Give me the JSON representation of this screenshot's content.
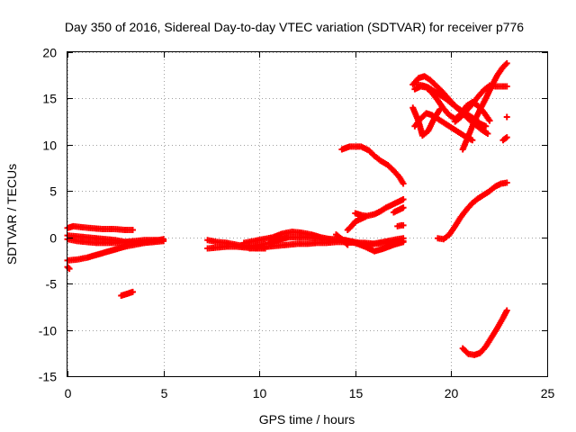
{
  "chart_data": {
    "type": "scatter",
    "title": "Day 350 of 2016, Sidereal Day-to-day VTEC variation (SDTVAR) for receiver p776",
    "xlabel": "GPS time / hours",
    "ylabel": "SDTVAR / TECUs",
    "xlim": [
      0,
      25
    ],
    "ylim": [
      -15,
      20
    ],
    "xticks": [
      "0",
      "5",
      "10",
      "15",
      "20",
      "25"
    ],
    "yticks": [
      "-15",
      "-10",
      "-5",
      "0",
      "5",
      "10",
      "15",
      "20"
    ],
    "grid": true,
    "marker": "plus",
    "color": "#ff0000",
    "traces": [
      {
        "x": [
          0.0,
          0.3,
          0.7,
          1.2,
          1.8,
          2.4,
          3.0,
          3.4
        ],
        "y": [
          1.0,
          1.2,
          1.1,
          1.0,
          0.9,
          0.9,
          0.8,
          0.8
        ]
      },
      {
        "x": [
          0.0,
          0.5,
          1.0,
          1.5,
          2.0,
          2.5,
          3.0,
          3.5,
          4.0,
          4.5,
          5.0
        ],
        "y": [
          -0.2,
          -0.4,
          -0.5,
          -0.6,
          -0.6,
          -0.6,
          -0.5,
          -0.4,
          -0.3,
          -0.3,
          -0.3
        ]
      },
      {
        "x": [
          0.0,
          0.5,
          1.0,
          1.5,
          2.0,
          2.5,
          3.0,
          3.5,
          4.0,
          4.5,
          5.0
        ],
        "y": [
          0.2,
          0.1,
          0.0,
          -0.1,
          -0.2,
          -0.3,
          -0.5,
          -0.6,
          -0.6,
          -0.4,
          -0.2
        ]
      },
      {
        "x": [
          0.0,
          0.5,
          1.0,
          1.5,
          2.0,
          2.5,
          3.0,
          3.5,
          4.0,
          4.5,
          5.0
        ],
        "y": [
          -2.5,
          -2.4,
          -2.2,
          -1.9,
          -1.6,
          -1.3,
          -1.0,
          -0.8,
          -0.6,
          -0.5,
          -0.4
        ]
      },
      {
        "x": [
          0.0,
          0.1
        ],
        "y": [
          -3.2,
          -3.4
        ]
      },
      {
        "x": [
          2.8,
          3.1,
          3.4
        ],
        "y": [
          -6.3,
          -6.1,
          -5.9
        ]
      },
      {
        "x": [
          7.3,
          7.8,
          8.3,
          8.8,
          9.3,
          9.8,
          10.3
        ],
        "y": [
          -0.3,
          -0.5,
          -0.6,
          -0.8,
          -1.0,
          -0.9,
          -0.7
        ]
      },
      {
        "x": [
          7.3,
          7.8,
          8.3,
          8.8,
          9.3,
          9.8,
          10.3
        ],
        "y": [
          -1.2,
          -1.1,
          -1.0,
          -1.0,
          -1.1,
          -1.2,
          -1.2
        ]
      },
      {
        "x": [
          9.2,
          9.7,
          10.2,
          10.7,
          11.2,
          11.7,
          12.2,
          12.7,
          13.2,
          13.7,
          14.2,
          14.7,
          15.2,
          15.7,
          16.2,
          16.7,
          17.2,
          17.5
        ],
        "y": [
          -0.6,
          -0.4,
          -0.2,
          0.0,
          0.4,
          0.6,
          0.5,
          0.3,
          0.0,
          -0.2,
          -0.3,
          -0.4,
          -0.6,
          -0.8,
          -0.6,
          -0.4,
          -0.2,
          -0.1
        ]
      },
      {
        "x": [
          9.5,
          10.0,
          10.5,
          11.0,
          11.5,
          12.0,
          12.5,
          13.0,
          13.5,
          14.0,
          14.5,
          15.0,
          15.5,
          16.0,
          16.5,
          17.0,
          17.5
        ],
        "y": [
          -1.2,
          -1.1,
          -1.0,
          -0.9,
          -0.8,
          -0.7,
          -0.7,
          -0.6,
          -0.6,
          -0.5,
          -0.5,
          -0.6,
          -0.6,
          -0.7,
          -0.6,
          -0.5,
          -0.4
        ]
      },
      {
        "x": [
          10.5,
          11.0,
          11.5,
          12.0,
          12.5,
          13.0,
          13.5,
          14.0,
          14.5,
          15.0,
          15.5,
          16.0,
          16.5,
          17.0,
          17.5
        ],
        "y": [
          -0.6,
          -0.3,
          0.0,
          0.0,
          0.0,
          -0.1,
          -0.2,
          -0.2,
          -0.3,
          -0.6,
          -1.0,
          -1.5,
          -1.2,
          -0.8,
          -0.5
        ]
      },
      {
        "x": [
          14.0,
          14.3,
          14.6
        ],
        "y": [
          0.3,
          -0.2,
          -0.8
        ]
      },
      {
        "x": [
          14.3,
          14.7,
          15.0,
          15.3,
          15.7,
          16.0,
          16.3,
          16.7,
          17.0,
          17.3,
          17.5
        ],
        "y": [
          9.5,
          9.8,
          9.8,
          9.8,
          9.4,
          8.8,
          8.3,
          7.8,
          7.2,
          6.5,
          5.8
        ]
      },
      {
        "x": [
          14.6,
          14.8,
          15.0,
          15.3,
          15.6,
          16.0,
          16.3,
          16.6,
          17.0,
          17.3,
          17.5
        ],
        "y": [
          0.8,
          1.2,
          1.7,
          2.0,
          2.3,
          2.5,
          2.8,
          3.2,
          3.6,
          3.9,
          4.1
        ]
      },
      {
        "x": [
          15.0,
          15.3,
          15.6
        ],
        "y": [
          2.6,
          2.4,
          2.3
        ]
      },
      {
        "x": [
          17.0,
          17.3,
          17.5
        ],
        "y": [
          2.7,
          3.0,
          3.2
        ]
      },
      {
        "x": [
          17.2,
          17.4,
          17.5
        ],
        "y": [
          1.2,
          1.3,
          1.3
        ]
      },
      {
        "x": [
          18.0,
          18.3,
          18.6,
          18.9,
          19.2,
          19.5,
          19.8,
          20.1,
          20.4,
          20.7,
          21.0,
          21.3,
          21.6,
          21.9
        ],
        "y": [
          16.5,
          17.2,
          17.4,
          17.0,
          16.4,
          15.8,
          15.1,
          14.4,
          13.8,
          13.2,
          12.6,
          12.1,
          11.6,
          11.2
        ]
      },
      {
        "x": [
          18.2,
          18.5,
          18.8,
          19.1,
          19.4,
          19.7,
          20.0,
          20.3,
          20.6,
          20.9,
          21.2,
          21.5,
          21.8
        ],
        "y": [
          16.5,
          16.4,
          16.2,
          15.8,
          15.4,
          15.0,
          14.5,
          14.0,
          13.6,
          13.2,
          12.8,
          12.3,
          12.0
        ]
      },
      {
        "x": [
          18.1,
          18.4,
          18.7,
          19.0,
          19.3,
          19.6,
          19.9,
          20.2,
          20.5,
          20.8,
          21.1,
          21.4,
          21.7,
          22.0
        ],
        "y": [
          16.0,
          16.3,
          16.2,
          15.6,
          14.8,
          13.9,
          13.2,
          12.8,
          13.3,
          14.2,
          14.6,
          14.2,
          13.5,
          12.6
        ]
      },
      {
        "x": [
          18.0,
          18.3,
          18.5,
          18.8,
          19.1,
          19.4
        ],
        "y": [
          14.0,
          12.5,
          11.0,
          11.5,
          12.8,
          13.8
        ]
      },
      {
        "x": [
          18.1,
          18.4,
          18.7,
          19.0,
          19.3,
          19.6,
          19.9,
          20.2,
          20.5,
          20.8,
          21.1
        ],
        "y": [
          12.0,
          12.8,
          13.4,
          13.2,
          12.8,
          12.4,
          12.0,
          11.6,
          11.2,
          10.8,
          10.5
        ]
      },
      {
        "x": [
          20.2,
          20.5,
          20.8,
          21.1,
          21.4,
          21.7,
          22.0,
          22.3,
          22.6,
          22.9
        ],
        "y": [
          12.5,
          13.0,
          13.7,
          14.4,
          15.2,
          15.9,
          16.4,
          16.3,
          16.3,
          16.3
        ]
      },
      {
        "x": [
          20.6,
          20.9,
          21.2,
          21.5,
          21.8,
          22.1,
          22.4,
          22.7,
          22.9
        ],
        "y": [
          9.5,
          11.0,
          12.5,
          13.8,
          15.0,
          16.3,
          17.5,
          18.4,
          18.8
        ]
      },
      {
        "x": [
          19.3,
          19.6,
          19.9,
          20.2,
          20.5,
          20.8,
          21.1,
          21.4,
          21.7,
          22.0,
          22.3,
          22.6,
          22.9
        ],
        "y": [
          -0.1,
          -0.2,
          0.3,
          1.2,
          2.2,
          3.0,
          3.7,
          4.2,
          4.6,
          5.0,
          5.5,
          5.8,
          5.9
        ]
      },
      {
        "x": [
          20.6,
          20.9,
          21.2,
          21.5,
          21.8,
          22.1,
          22.4,
          22.7,
          22.9
        ],
        "y": [
          -12.0,
          -12.6,
          -12.7,
          -12.5,
          -11.8,
          -10.8,
          -9.8,
          -8.7,
          -7.9
        ]
      },
      {
        "x": [
          22.7,
          22.9
        ],
        "y": [
          10.5,
          10.8
        ]
      },
      {
        "x": [
          22.9
        ],
        "y": [
          13.0
        ]
      }
    ]
  }
}
